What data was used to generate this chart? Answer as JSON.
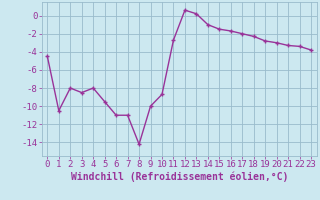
{
  "x": [
    0,
    1,
    2,
    3,
    4,
    5,
    6,
    7,
    8,
    9,
    10,
    11,
    12,
    13,
    14,
    15,
    16,
    17,
    18,
    19,
    20,
    21,
    22,
    23
  ],
  "y": [
    -4.5,
    -10.5,
    -8.0,
    -8.5,
    -8.0,
    -9.5,
    -11.0,
    -11.0,
    -14.2,
    -10.0,
    -8.7,
    -2.7,
    0.6,
    0.2,
    -1.0,
    -1.5,
    -1.7,
    -2.0,
    -2.3,
    -2.8,
    -3.0,
    -3.3,
    -3.4,
    -3.8
  ],
  "line_color": "#993399",
  "marker": "+",
  "marker_size": 3,
  "marker_lw": 1.0,
  "line_width": 1.0,
  "xlabel": "Windchill (Refroidissement éolien,°C)",
  "ylabel": "",
  "title": "",
  "xlim": [
    -0.5,
    23.5
  ],
  "ylim": [
    -15.5,
    1.5
  ],
  "yticks": [
    0,
    -2,
    -4,
    -6,
    -8,
    -10,
    -12,
    -14
  ],
  "xticks": [
    0,
    1,
    2,
    3,
    4,
    5,
    6,
    7,
    8,
    9,
    10,
    11,
    12,
    13,
    14,
    15,
    16,
    17,
    18,
    19,
    20,
    21,
    22,
    23
  ],
  "bg_color": "#cce8f0",
  "grid_color": "#99bbcc",
  "font_color": "#993399",
  "tick_fontsize": 6.5,
  "xlabel_fontsize": 7.0
}
